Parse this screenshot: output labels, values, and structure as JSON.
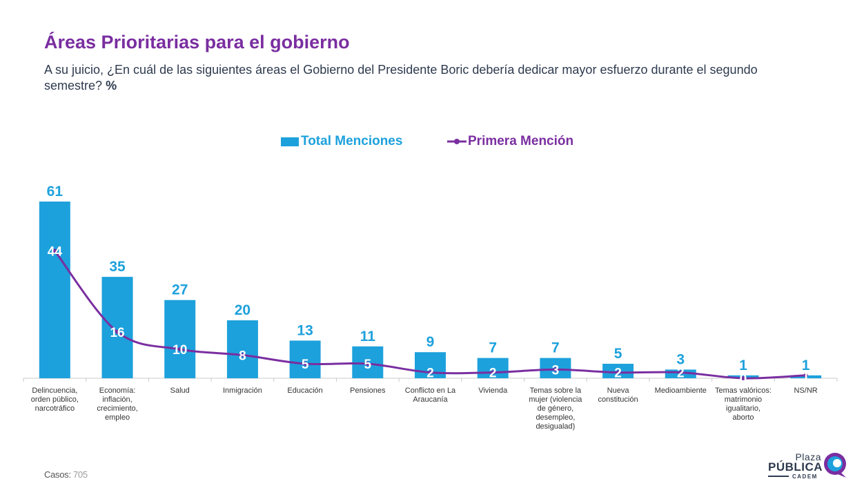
{
  "header": {
    "title": "Áreas Prioritarias para el gobierno",
    "subtitle": "A su juicio, ¿En cuál de las siguientes áreas el Gobierno del Presidente Boric debería dedicar mayor esfuerzo durante el segundo semestre?",
    "subtitle_unit": "%"
  },
  "legend": {
    "total": "Total Menciones",
    "first": "Primera Mención"
  },
  "colors": {
    "bar": "#1da1dc",
    "line": "#7a2ea0",
    "title": "#7a2ea0",
    "text": "#2e3a4e"
  },
  "chart_data": {
    "type": "bar",
    "categories": [
      [
        "Delincuencia,",
        "orden público,",
        "narcotráfico"
      ],
      [
        "Economía:",
        "inflación,",
        "crecimiento,",
        "empleo"
      ],
      [
        "Salud"
      ],
      [
        "Inmigración"
      ],
      [
        "Educación"
      ],
      [
        "Pensiones"
      ],
      [
        "Conflicto en La",
        "Araucanía"
      ],
      [
        "Vivienda"
      ],
      [
        "Temas sobre la",
        "mujer (violencia",
        "de género,",
        "desempleo,",
        "desigualad)"
      ],
      [
        "Nueva",
        "constitución"
      ],
      [
        "Medioambiente"
      ],
      [
        "Temas valóricos:",
        "matrimonio",
        "igualitario,",
        "aborto"
      ],
      [
        "NS/NR"
      ]
    ],
    "series": [
      {
        "name": "Total Menciones",
        "type": "bar",
        "values": [
          61,
          35,
          27,
          20,
          13,
          11,
          9,
          7,
          7,
          5,
          3,
          1,
          1
        ]
      },
      {
        "name": "Primera Mención",
        "type": "line",
        "values": [
          44,
          16,
          10,
          8,
          5,
          5,
          2,
          2,
          3,
          2,
          2,
          0,
          1
        ]
      }
    ],
    "ylim": [
      0,
      65
    ]
  },
  "footer": {
    "casos_label": "Casos",
    "casos_value": "705"
  },
  "logo": {
    "line1": "Plaza",
    "line2": "PÚBLICA",
    "line3": "CADEM"
  }
}
